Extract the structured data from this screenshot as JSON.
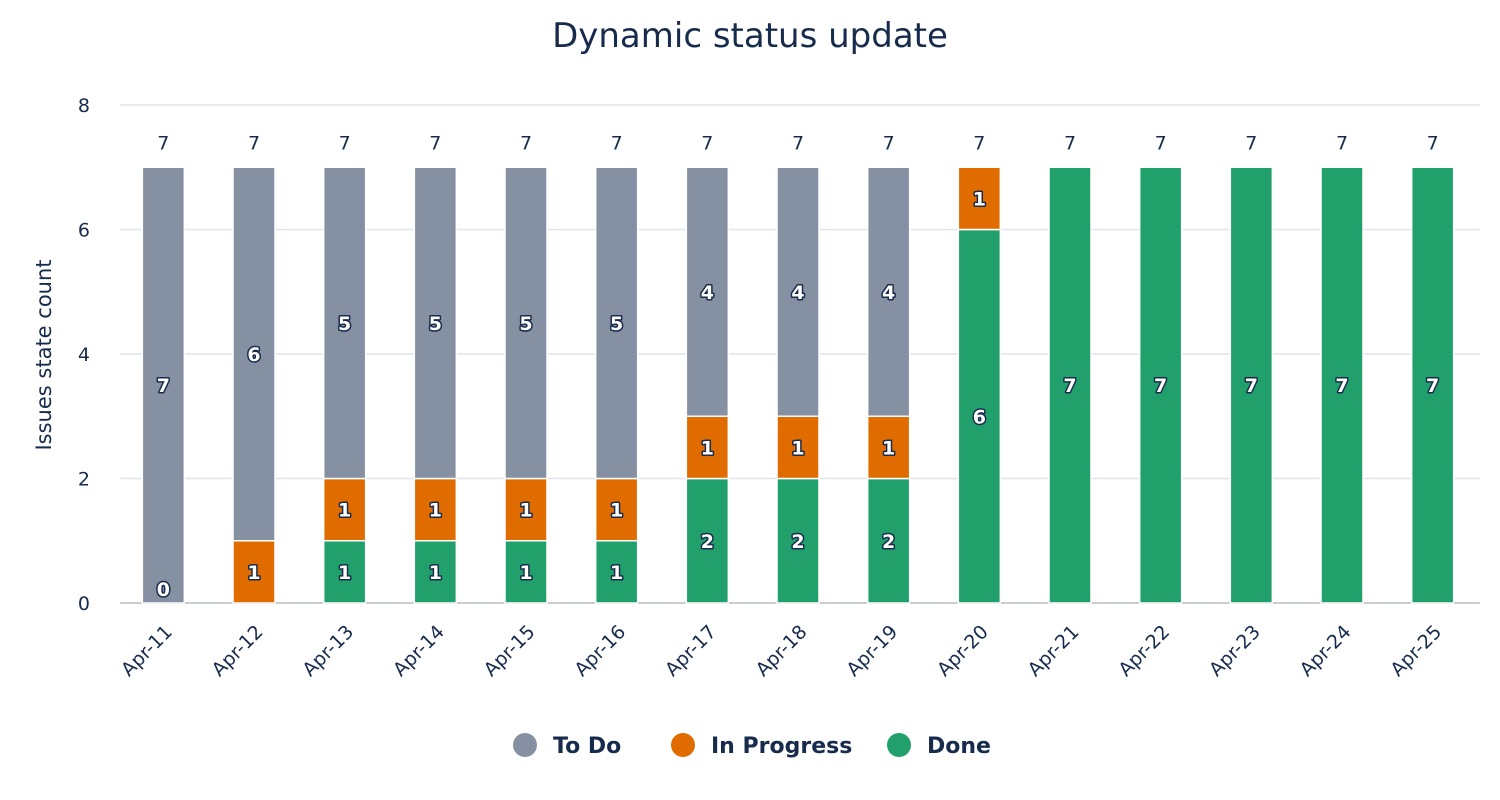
{
  "chart_data": {
    "type": "bar",
    "stacked": true,
    "title": "Dynamic status update",
    "xlabel": "",
    "ylabel": "Issues state count",
    "ylim": [
      0,
      8
    ],
    "yticks": [
      0,
      2,
      4,
      6,
      8
    ],
    "grid": true,
    "legend_position": "bottom-center",
    "categories": [
      "Apr-11",
      "Apr-12",
      "Apr-13",
      "Apr-14",
      "Apr-15",
      "Apr-16",
      "Apr-17",
      "Apr-18",
      "Apr-19",
      "Apr-20",
      "Apr-21",
      "Apr-22",
      "Apr-23",
      "Apr-24",
      "Apr-25"
    ],
    "series": [
      {
        "name": "Done",
        "color": "#22a06b",
        "values": [
          0,
          0,
          1,
          1,
          1,
          1,
          2,
          2,
          2,
          6,
          7,
          7,
          7,
          7,
          7
        ]
      },
      {
        "name": "In Progress",
        "color": "#e06c00",
        "values": [
          0,
          1,
          1,
          1,
          1,
          1,
          1,
          1,
          1,
          1,
          0,
          0,
          0,
          0,
          0
        ]
      },
      {
        "name": "To Do",
        "color": "#8590a2",
        "values": [
          7,
          6,
          5,
          5,
          5,
          5,
          4,
          4,
          4,
          0,
          0,
          0,
          0,
          0,
          0
        ]
      }
    ],
    "zero_labels": [
      {
        "category": "Apr-11",
        "series": "Done",
        "text": "0"
      }
    ],
    "totals": [
      7,
      7,
      7,
      7,
      7,
      7,
      7,
      7,
      7,
      7,
      7,
      7,
      7,
      7,
      7
    ],
    "legend": [
      {
        "name": "To Do",
        "color": "#8590a2"
      },
      {
        "name": "In Progress",
        "color": "#e06c00"
      },
      {
        "name": "Done",
        "color": "#22a06b"
      }
    ]
  }
}
